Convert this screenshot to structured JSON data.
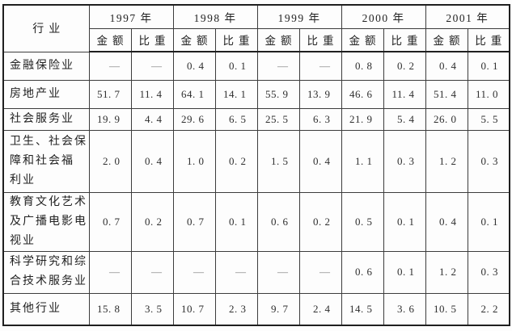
{
  "table": {
    "corner_header": "行业",
    "year_headers": [
      "1997 年",
      "1998 年",
      "1999 年",
      "2000 年",
      "2001 年"
    ],
    "sub_headers": {
      "amount": "金额",
      "share": "比重"
    },
    "rows": [
      {
        "label": "金融保险业",
        "values": [
          "—",
          "—",
          "0.4",
          "0.1",
          "—",
          "—",
          "0.8",
          "0.2",
          "0.4",
          "0.1"
        ]
      },
      {
        "label": "房地产业",
        "values": [
          "51.7",
          "11.4",
          "64.1",
          "14.1",
          "55.9",
          "13.9",
          "46.6",
          "11.4",
          "51.4",
          "11.0"
        ]
      },
      {
        "label": "社会服务业",
        "values": [
          "19.9",
          "4.4",
          "29.6",
          "6.5",
          "25.5",
          "6.3",
          "21.9",
          "5.4",
          "26.0",
          "5.5"
        ]
      },
      {
        "label": "卫生、社会保\n障和社会福\n利业",
        "values": [
          "2.0",
          "0.4",
          "1.0",
          "0.2",
          "1.5",
          "0.4",
          "1.1",
          "0.3",
          "1.2",
          "0.3"
        ]
      },
      {
        "label": "教育文化艺术\n及广播电影电\n视业",
        "values": [
          "0.7",
          "0.2",
          "0.7",
          "0.1",
          "0.6",
          "0.2",
          "0.5",
          "0.1",
          "0.4",
          "0.1"
        ]
      },
      {
        "label": "科学研究和综\n合技术服务业",
        "values": [
          "—",
          "—",
          "—",
          "—",
          "—",
          "—",
          "0.6",
          "0.1",
          "1.2",
          "0.3"
        ]
      },
      {
        "label": "其他行业",
        "values": [
          "15.8",
          "3.5",
          "10.7",
          "2.3",
          "9.7",
          "2.4",
          "14.5",
          "3.6",
          "10.5",
          "2.2"
        ]
      }
    ]
  }
}
